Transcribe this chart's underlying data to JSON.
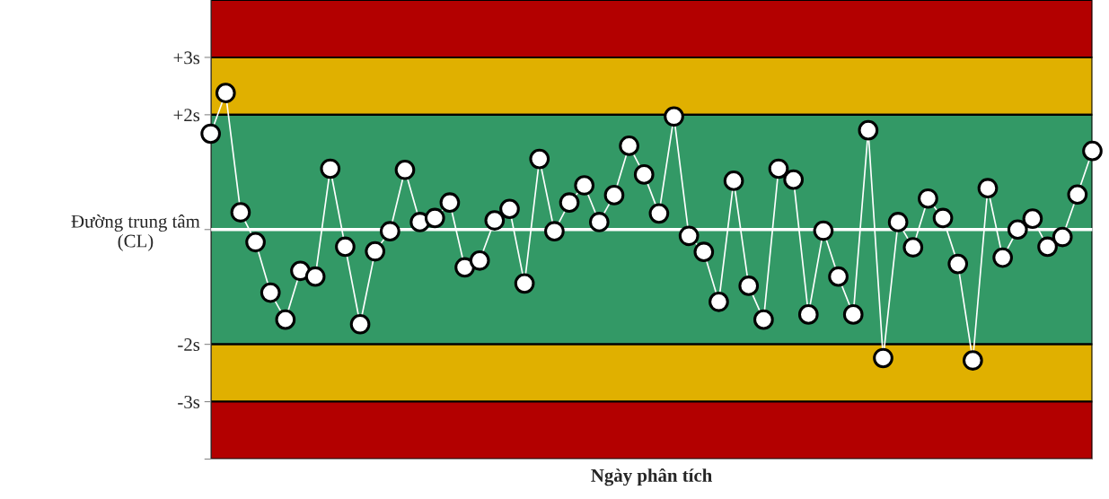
{
  "chart_data": {
    "type": "line",
    "xlabel": "Ngày phân tích",
    "categories": [
      null,
      null,
      null,
      null,
      null,
      null,
      null,
      null,
      null,
      null,
      null,
      null,
      null,
      null,
      null,
      null,
      null,
      null,
      null,
      null,
      null,
      null,
      null,
      null,
      null,
      null,
      null,
      null,
      null,
      null,
      null,
      null,
      null,
      null,
      null,
      null,
      null,
      null,
      null,
      null,
      null,
      null,
      null,
      null,
      null,
      null,
      null,
      null,
      null,
      null,
      null,
      null,
      null,
      null,
      null,
      null,
      null,
      null,
      null,
      null
    ],
    "series": [
      {
        "color": "#ffffff",
        "values": [
          1.67,
          2.38,
          0.3,
          -0.22,
          -1.1,
          -1.57,
          -0.72,
          -0.82,
          1.06,
          -0.3,
          -1.65,
          -0.38,
          -0.03,
          1.04,
          0.13,
          0.2,
          0.47,
          -0.66,
          -0.54,
          0.16,
          0.36,
          -0.94,
          1.23,
          -0.03,
          0.47,
          0.77,
          0.13,
          0.6,
          1.46,
          0.96,
          0.28,
          1.97,
          -0.11,
          -0.39,
          -1.26,
          0.85,
          -0.98,
          -1.57,
          1.06,
          0.87,
          -1.48,
          -0.02,
          -0.82,
          -1.48,
          1.73,
          -2.24,
          0.13,
          -0.31,
          0.54,
          0.2,
          -0.6,
          -2.28,
          0.72,
          -0.49,
          0.0,
          0.19,
          -0.3,
          -0.13,
          0.61,
          1.37
        ]
      }
    ],
    "ylim": [
      -4,
      4
    ],
    "yticks": [
      {
        "value": 3,
        "label": "+3s"
      },
      {
        "value": 2,
        "label": "+2s"
      },
      {
        "value": 0,
        "label": "Đường trung tâm\n(CL)"
      },
      {
        "value": -2,
        "label": "-2s"
      },
      {
        "value": -3,
        "label": "-3s"
      },
      {
        "value": -4,
        "label": null
      }
    ],
    "bands": [
      {
        "axis": "y",
        "from": 3,
        "to": 4,
        "color": "#b30000"
      },
      {
        "axis": "y",
        "from": 2,
        "to": 3,
        "color": "#e0b000"
      },
      {
        "axis": "y",
        "from": -2,
        "to": 2,
        "color": "#339966"
      },
      {
        "axis": "y",
        "from": -3,
        "to": -2,
        "color": "#e0b000"
      },
      {
        "axis": "y",
        "from": -4,
        "to": -3,
        "color": "#b30000"
      }
    ],
    "ref_lines": [
      {
        "axis": "y",
        "value": 0,
        "color": "#ffffff",
        "line_style": "solid"
      }
    ],
    "marker": "circle",
    "line_style": "solid",
    "grid": false,
    "legend": false
  }
}
